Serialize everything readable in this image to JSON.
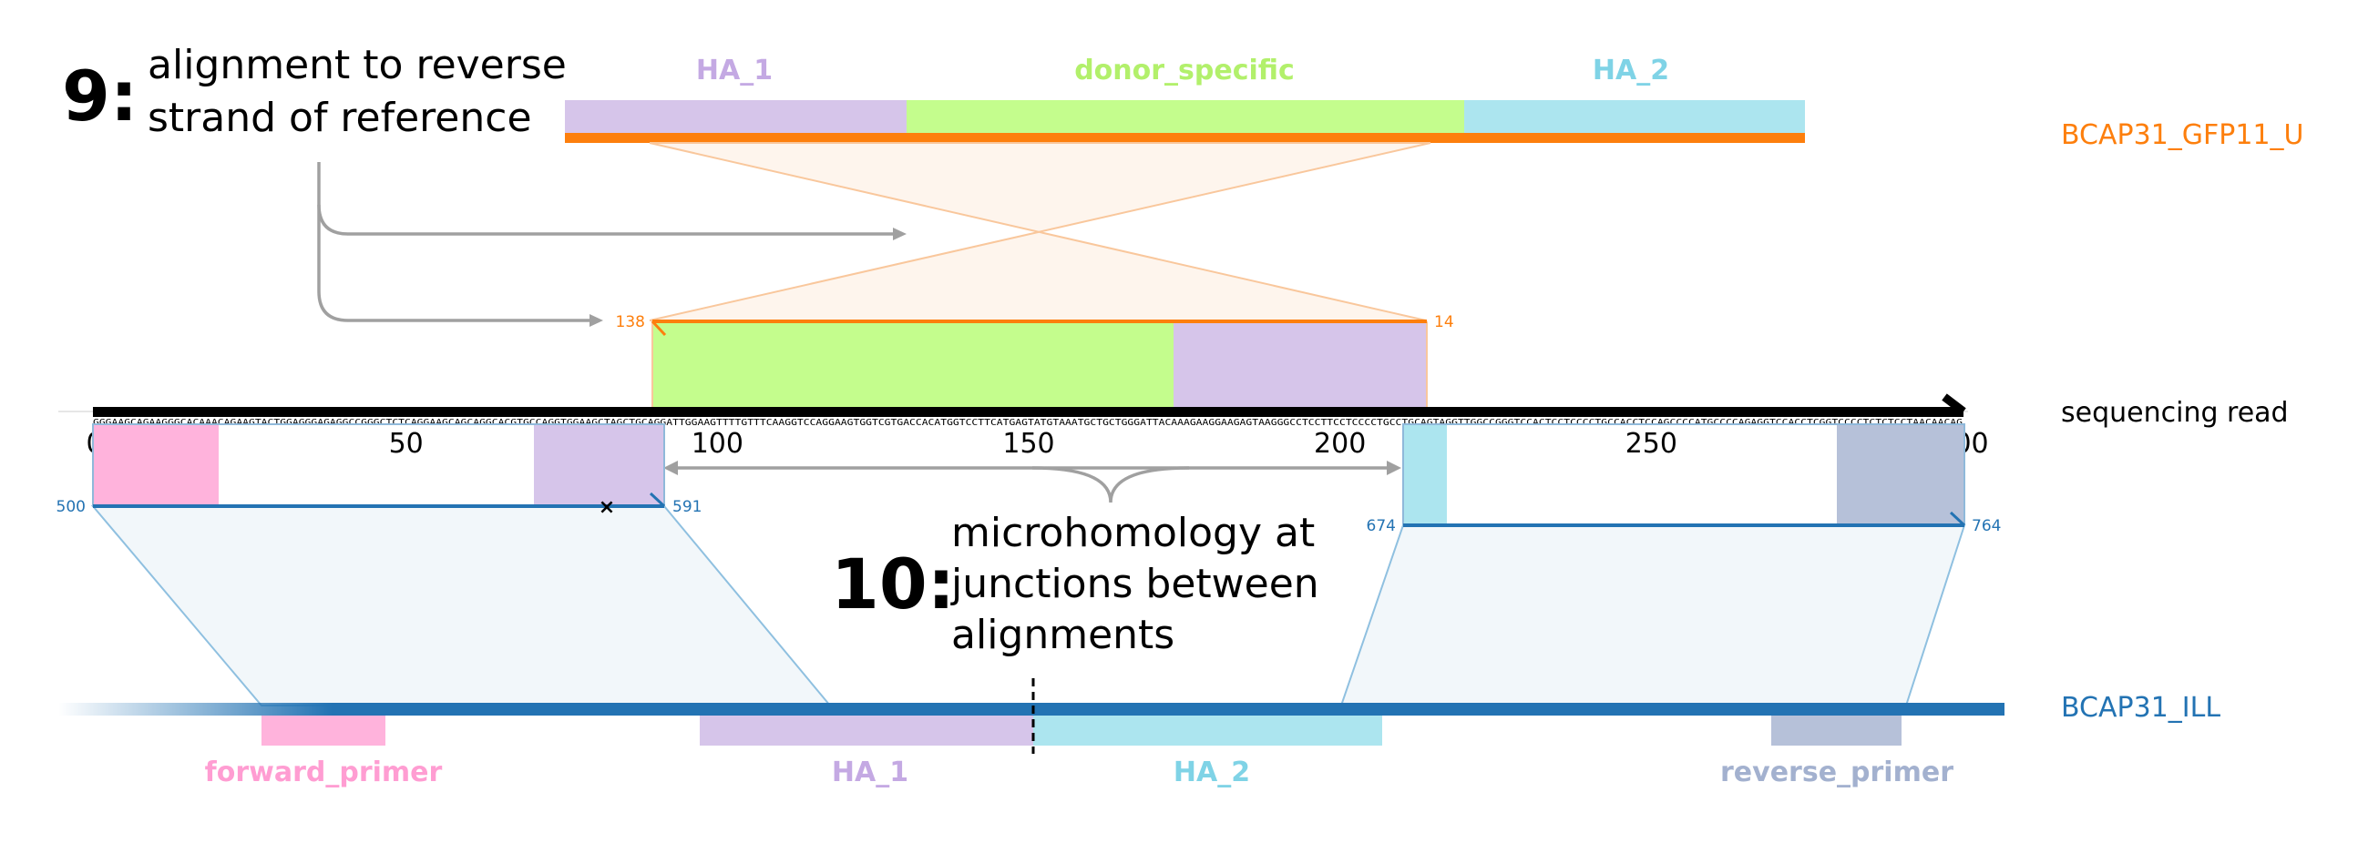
{
  "colors": {
    "ha1": "#d6c5ea",
    "donor": "#c4fd8d",
    "ha2": "#ace5ef",
    "fwd_primer": "#ffb3dc",
    "rev_primer": "#b6c1d9",
    "orange": "#fd7f0d",
    "blue": "#2373b3",
    "gray": "#a0a0a0",
    "ha1_text": "#c4a9e3",
    "donor_text": "#b2f06b",
    "ha2_text": "#7fd3e6",
    "fwd_text": "#ff9dd2",
    "rev_text": "#a3b1cf"
  },
  "annotations": {
    "n9": "9:",
    "n9_line1": "alignment to reverse",
    "n9_line2": "strand of reference",
    "n10": "10:",
    "n10_line1": "microhomology at",
    "n10_line2": "junctions between",
    "n10_line3": "alignments"
  },
  "references": {
    "donor_ref": {
      "name": "BCAP31_GFP11_U",
      "features": [
        {
          "label": "HA_1",
          "color": "ha1"
        },
        {
          "label": "donor_specific",
          "color": "donor"
        },
        {
          "label": "HA_2",
          "color": "ha2"
        }
      ]
    },
    "genomic_ref": {
      "name": "BCAP31_ILL",
      "features": [
        {
          "label": "forward_primer",
          "color": "fwd_primer"
        },
        {
          "label": "HA_1",
          "color": "ha1"
        },
        {
          "label": "HA_2",
          "color": "ha2"
        },
        {
          "label": "reverse_primer",
          "color": "rev_primer"
        }
      ]
    }
  },
  "read": {
    "label": "sequencing read",
    "length": 300,
    "ticks": [
      0,
      50,
      100,
      150,
      200,
      250,
      300
    ],
    "sequence": "GGGAAGCAGAAGGGCACAAACAGAAGTACTGGAGGGAGAGGCCGGGCTCTCAGGAAGCAGCAGGCACGTGCCAGGTGGAAGCTAGCTGCAGGATTGGAAGTTTTGTTTCAAGGTCCAGGAAGTGGTCGTGACCACATGGTCCTTCATGAGTATGTAAATGCTGCTGGGATTACAAAGAAGGAAGAGTAAGGGCCTCCTTCCTCCCCTGCCTGCAGTAGGTTGGCCGGGTCCACTCCTCCCCTGCCACCTCCAGCCCCATGCCCCAGAGGTCCACCTCGGTCCCCTCTCTCCTAACAACAG"
  },
  "alignments": {
    "donor": {
      "start_label": "138",
      "end_label": "14"
    },
    "genomic_1": {
      "start_label": "500",
      "end_label": "591",
      "mismatch_marker": "×"
    },
    "genomic_2": {
      "start_label": "674",
      "end_label": "764"
    }
  }
}
